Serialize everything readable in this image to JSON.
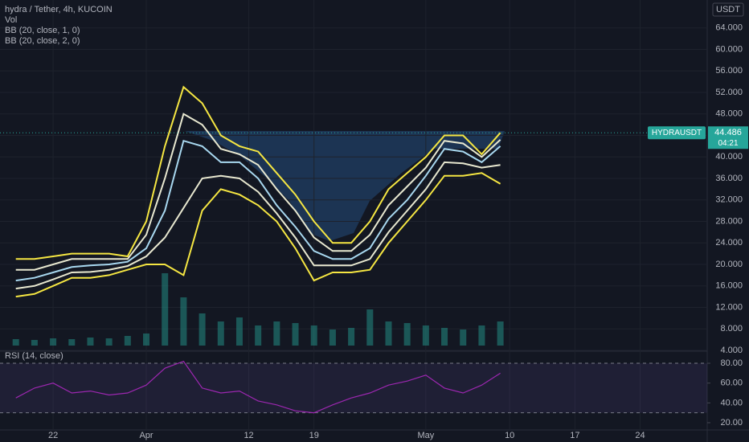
{
  "chart_data": [
    {
      "type": "line",
      "title": "hydra / Tether, 4h, KUCOIN",
      "indicators": [
        "BB (20, close, 1, 0)",
        "BB (20, close, 2, 0)"
      ],
      "y_unit": "USDT",
      "symbol": "HYDRAUSDT",
      "last_value": 44.486,
      "countdown": "04:21",
      "x": [
        0,
        2,
        4,
        6,
        8,
        10,
        12,
        14,
        16,
        18,
        20,
        22,
        24,
        26,
        28,
        30,
        32,
        34,
        36,
        38,
        40,
        42,
        44,
        46,
        48,
        50,
        52
      ],
      "xlim": [
        -1.7,
        74.2
      ],
      "xticks": [
        {
          "value": 4,
          "label": "22"
        },
        {
          "value": 14,
          "label": "Apr"
        },
        {
          "value": 25,
          "label": "12"
        },
        {
          "value": 32,
          "label": "19"
        },
        {
          "value": 44,
          "label": "May"
        },
        {
          "value": 53,
          "label": "10"
        },
        {
          "value": 60,
          "label": "17"
        },
        {
          "value": 67,
          "label": "24"
        }
      ],
      "ylim": [
        3.85,
        69.2
      ],
      "yticks": [
        {
          "value": 4,
          "label": "4.000"
        },
        {
          "value": 8,
          "label": "8.000"
        },
        {
          "value": 12,
          "label": "12.000"
        },
        {
          "value": 16,
          "label": "16.000"
        },
        {
          "value": 20,
          "label": "20.000"
        },
        {
          "value": 24,
          "label": "24.000"
        },
        {
          "value": 28,
          "label": "28.000"
        },
        {
          "value": 32,
          "label": "32.000"
        },
        {
          "value": 36,
          "label": "36.000"
        },
        {
          "value": 40,
          "label": "40.000"
        },
        {
          "value": 44,
          "label": "44.000"
        },
        {
          "value": 48,
          "label": "48.000"
        },
        {
          "value": 52,
          "label": "52.000"
        },
        {
          "value": 56,
          "label": "56.000"
        },
        {
          "value": 60,
          "label": "60.000"
        },
        {
          "value": 64,
          "label": "64.000"
        }
      ],
      "grid": true,
      "series": [
        {
          "color": "#f5e642",
          "values": [
            21,
            21,
            21.5,
            22,
            22,
            22,
            21.5,
            28,
            42,
            53,
            50,
            44,
            42,
            41,
            37,
            33,
            28,
            24,
            24,
            28,
            34,
            37,
            40,
            44,
            44,
            40.5,
            44.5
          ]
        },
        {
          "color": "#e8e8d0",
          "values": [
            19,
            19,
            20,
            21,
            21,
            21,
            21,
            25.5,
            36,
            48,
            46,
            41.5,
            40.5,
            38.5,
            34,
            30,
            25,
            22.5,
            22.5,
            25.5,
            31,
            34.5,
            38,
            43,
            42.5,
            40,
            43.2
          ]
        },
        {
          "color": "#a8d8f0",
          "values": [
            17,
            17.5,
            18.5,
            19.5,
            19.8,
            20,
            20.5,
            23,
            30,
            43,
            42,
            39,
            39,
            36,
            31,
            27,
            22.5,
            21,
            21,
            23,
            28.5,
            32,
            36.5,
            41.5,
            41,
            39,
            42
          ]
        },
        {
          "color": "#e8e8d0",
          "values": [
            15.5,
            16,
            17.2,
            18.5,
            18.6,
            19,
            19.7,
            21.5,
            25,
            30.5,
            36,
            36.5,
            36,
            33.5,
            29.5,
            25,
            19.8,
            19.8,
            19.8,
            21,
            26,
            30,
            34,
            39,
            38.8,
            38,
            38.5
          ]
        },
        {
          "color": "#f5e642",
          "values": [
            14,
            14.5,
            16,
            17.5,
            17.5,
            18,
            19,
            20,
            20,
            18,
            30,
            34,
            33,
            31,
            28,
            23,
            17,
            18.5,
            18.5,
            19,
            24,
            28,
            32,
            36.5,
            36.5,
            37,
            35
          ]
        }
      ]
    },
    {
      "type": "bar",
      "title": "Vol",
      "color": "#26a69a",
      "x": [
        0,
        2,
        4,
        6,
        8,
        10,
        12,
        14,
        16,
        18,
        20,
        22,
        24,
        26,
        28,
        30,
        32,
        34,
        36,
        38,
        40,
        42,
        44,
        46,
        48,
        50,
        52
      ],
      "ylim": [
        0,
        100
      ],
      "values": [
        8,
        7,
        9,
        8,
        10,
        9,
        12,
        15,
        90,
        60,
        40,
        30,
        35,
        25,
        30,
        28,
        25,
        20,
        22,
        45,
        30,
        28,
        25,
        22,
        20,
        25,
        30
      ]
    },
    {
      "type": "line",
      "title": "RSI (14, close)",
      "x": [
        0,
        2,
        4,
        6,
        8,
        10,
        12,
        14,
        16,
        18,
        20,
        22,
        24,
        26,
        28,
        30,
        32,
        34,
        36,
        38,
        40,
        42,
        44,
        46,
        48,
        50,
        52
      ],
      "ylim": [
        12.7,
        92.2
      ],
      "yticks": [
        {
          "value": 20,
          "label": "20.00"
        },
        {
          "value": 40,
          "label": "40.00"
        },
        {
          "value": 60,
          "label": "60.00"
        },
        {
          "value": 80,
          "label": "80.00"
        }
      ],
      "band": [
        30,
        80
      ],
      "series": [
        {
          "color": "#9c27b0",
          "values": [
            45,
            55,
            60,
            50,
            52,
            48,
            50,
            58,
            75,
            82,
            55,
            50,
            52,
            42,
            38,
            32,
            30,
            38,
            45,
            50,
            58,
            62,
            68,
            55,
            50,
            58,
            70
          ]
        }
      ]
    }
  ]
}
